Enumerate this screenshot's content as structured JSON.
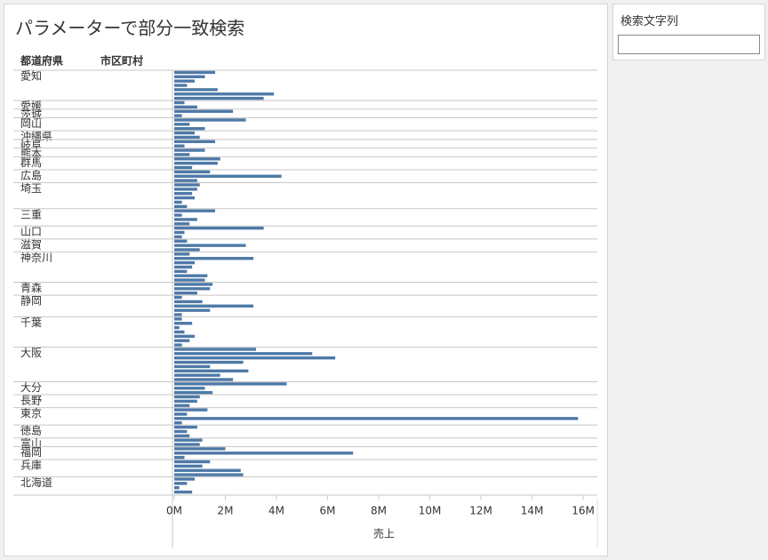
{
  "chart_data": {
    "type": "bar",
    "orientation": "horizontal",
    "title": "パラメーターで部分一致検索",
    "row_headers": [
      "都道府県",
      "市区町村"
    ],
    "x_label": "売上",
    "color": "#4e79a7",
    "xlim": [
      0,
      16600000
    ],
    "xticks": [
      {
        "value": 0,
        "label": "0M"
      },
      {
        "value": 2000000,
        "label": "2M"
      },
      {
        "value": 4000000,
        "label": "4M"
      },
      {
        "value": 6000000,
        "label": "6M"
      },
      {
        "value": 8000000,
        "label": "8M"
      },
      {
        "value": 10000000,
        "label": "10M"
      },
      {
        "value": 12000000,
        "label": "12M"
      },
      {
        "value": 14000000,
        "label": "14M"
      },
      {
        "value": 16000000,
        "label": "16M"
      }
    ],
    "groups": [
      {
        "name": "愛知",
        "values": [
          1600000,
          1200000,
          800000,
          500000,
          1700000,
          3900000,
          3500000
        ]
      },
      {
        "name": "愛媛",
        "values": [
          400000,
          900000
        ]
      },
      {
        "name": "茨城",
        "values": [
          2300000,
          300000
        ]
      },
      {
        "name": "岡山",
        "values": [
          2800000,
          600000,
          1200000
        ]
      },
      {
        "name": "沖縄県",
        "values": [
          800000,
          1000000
        ]
      },
      {
        "name": "岐阜",
        "values": [
          1600000,
          400000
        ]
      },
      {
        "name": "熊本",
        "values": [
          1200000,
          600000
        ]
      },
      {
        "name": "群馬",
        "values": [
          1800000,
          1700000,
          700000
        ]
      },
      {
        "name": "広島",
        "values": [
          1400000,
          4200000,
          900000
        ]
      },
      {
        "name": "埼玉",
        "values": [
          1000000,
          900000,
          700000,
          800000,
          300000,
          500000
        ]
      },
      {
        "name": "三重",
        "values": [
          1600000,
          300000,
          900000,
          600000
        ]
      },
      {
        "name": "山口",
        "values": [
          3500000,
          400000,
          300000
        ]
      },
      {
        "name": "滋賀",
        "values": [
          500000,
          2800000,
          1000000
        ]
      },
      {
        "name": "神奈川",
        "values": [
          600000,
          3100000,
          800000,
          700000,
          500000,
          1300000,
          1200000
        ]
      },
      {
        "name": "青森",
        "values": [
          1500000,
          1400000,
          900000
        ]
      },
      {
        "name": "静岡",
        "values": [
          300000,
          1100000,
          3100000,
          1400000,
          300000
        ]
      },
      {
        "name": "千葉",
        "values": [
          300000,
          700000,
          200000,
          400000,
          800000,
          600000,
          300000
        ]
      },
      {
        "name": "大阪",
        "values": [
          3200000,
          5400000,
          6300000,
          2700000,
          1400000,
          2900000,
          1800000,
          2300000
        ]
      },
      {
        "name": "大分",
        "values": [
          4400000,
          1200000,
          1500000
        ]
      },
      {
        "name": "長野",
        "values": [
          1000000,
          900000,
          600000
        ]
      },
      {
        "name": "東京",
        "values": [
          1300000,
          500000,
          15800000,
          300000
        ]
      },
      {
        "name": "徳島",
        "values": [
          900000,
          500000,
          600000
        ]
      },
      {
        "name": "富山",
        "values": [
          1100000,
          1000000
        ]
      },
      {
        "name": "福岡",
        "values": [
          2000000,
          7000000,
          400000
        ]
      },
      {
        "name": "兵庫",
        "values": [
          1400000,
          1100000,
          2600000,
          2700000
        ]
      },
      {
        "name": "北海道",
        "values": [
          800000,
          500000,
          200000,
          700000
        ]
      }
    ]
  },
  "parameter": {
    "label": "検索文字列"
  }
}
